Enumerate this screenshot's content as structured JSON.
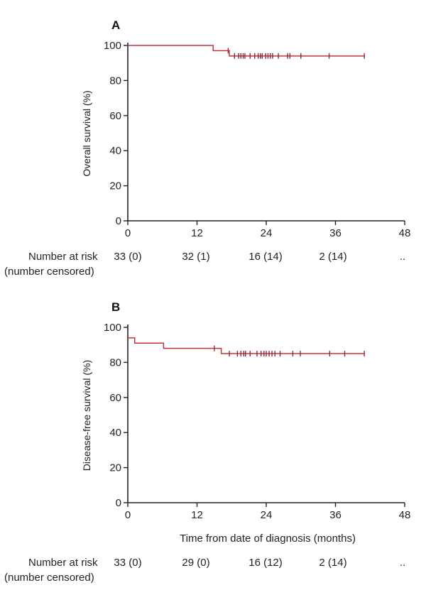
{
  "chart_data": [
    {
      "type": "line",
      "panel_label": "A",
      "ylabel": "Overall survival (%)",
      "xlabel": "",
      "xlim": [
        0,
        48
      ],
      "ylim": [
        0,
        100
      ],
      "xticks": [
        "0",
        "12",
        "24",
        "36",
        "48"
      ],
      "yticks": [
        "0",
        "20",
        "40",
        "60",
        "80",
        "100"
      ],
      "series": [
        {
          "color": "#c8323c",
          "x": [
            0,
            14.8,
            17.6,
            41
          ],
          "y": [
            100,
            97,
            94,
            94
          ],
          "censored_x": [
            17.4,
            18.5,
            19.2,
            19.6,
            20.0,
            20.3,
            21.2,
            22.0,
            22.6,
            23.0,
            23.3,
            23.9,
            24.3,
            24.7,
            25.1,
            26.1,
            27.7,
            28.1,
            30.0,
            34.9,
            41.0
          ]
        }
      ],
      "risk_table": {
        "label_line1": "Number at risk",
        "label_line2": "(number censored)",
        "values": [
          "33 (0)",
          "32 (1)",
          "16 (14)",
          "2 (14)",
          ".."
        ]
      }
    },
    {
      "type": "line",
      "panel_label": "B",
      "ylabel": "Disease-free survival (%)",
      "xlabel": "Time from date of diagnosis (months)",
      "xlim": [
        0,
        48
      ],
      "ylim": [
        0,
        100
      ],
      "xticks": [
        "0",
        "12",
        "24",
        "36",
        "48"
      ],
      "yticks": [
        "0",
        "20",
        "40",
        "60",
        "80",
        "100"
      ],
      "series": [
        {
          "color": "#c8323c",
          "x": [
            0,
            1.2,
            6.2,
            16.2,
            41
          ],
          "y": [
            94,
            91,
            88,
            85,
            85
          ],
          "censored_x": [
            15.0,
            17.6,
            19.0,
            19.6,
            20.1,
            20.4,
            21.2,
            22.4,
            23.1,
            23.6,
            24.0,
            24.5,
            25.0,
            25.5,
            26.4,
            28.6,
            29.9,
            35.0,
            37.6,
            41.0
          ]
        }
      ],
      "risk_table": {
        "label_line1": "Number at risk",
        "label_line2": "(number censored)",
        "values": [
          "33 (0)",
          "29 (0)",
          "16 (12)",
          "2 (14)",
          ".."
        ]
      }
    }
  ]
}
